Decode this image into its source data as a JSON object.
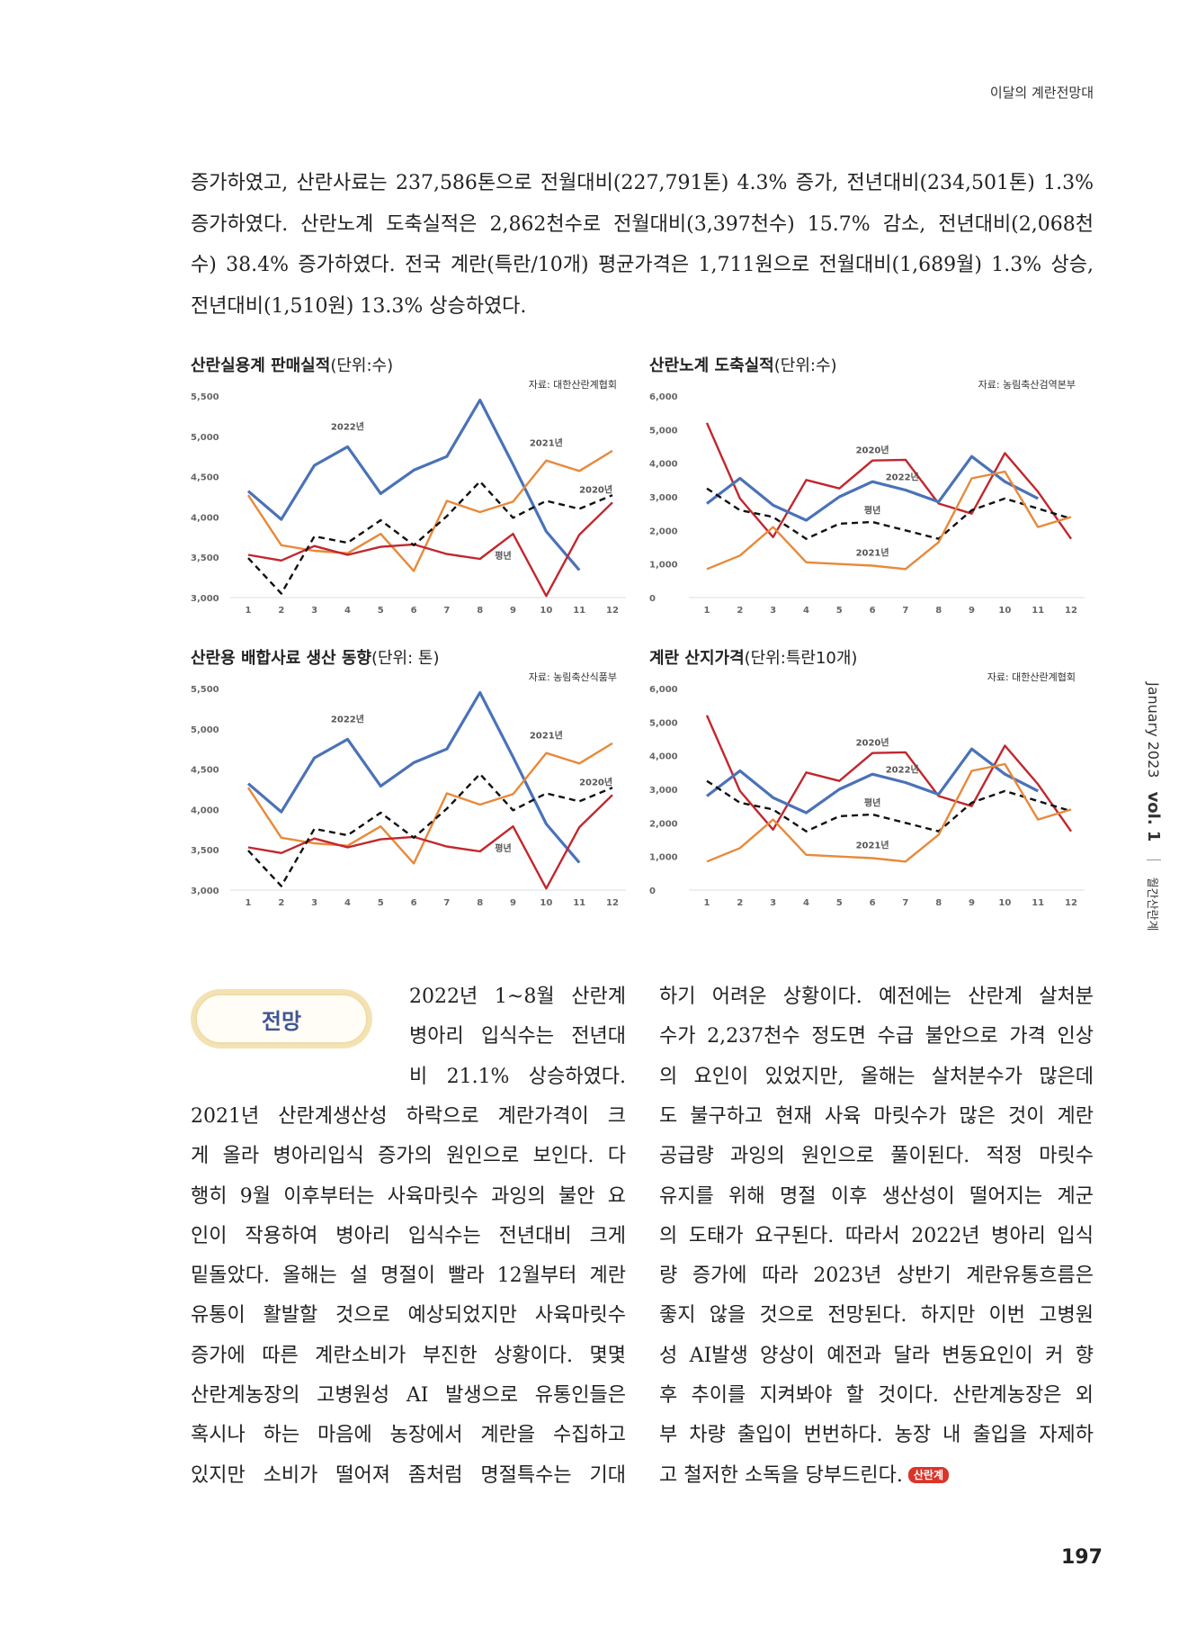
{
  "header": {
    "section": "이달의 계란전망대"
  },
  "intro": {
    "lines": [
      "증가하였고, 산란사료는 237,586톤으로 전월대비(227,791톤) 4.3% 증가, 전년대비(234,501톤) 1.3%",
      "증가하였다. 산란노계 도축실적은 2,862천수로 전월대비(3,397천수) 15.7% 감소, 전년대비(2,068천",
      "수) 38.4% 증가하였다. 전국 계란(특란/10개) 평균가격은 1,711원으로 전월대비(1,689월) 1.3% 상승,",
      "전년대비(1,510원) 13.3% 상승하였다."
    ]
  },
  "colors": {
    "y2022": "#4a72b8",
    "y2021": "#e8893a",
    "y2020": "#c1272d",
    "avg": "#111111",
    "badge_text": "#3f5597",
    "logo": "#d9352a"
  },
  "chart_data": [
    {
      "type": "line",
      "title": "산란실용계 판매실적",
      "unit": "(단위:수)",
      "source": "자료: 대한산란계협회",
      "categories": [
        "1",
        "2",
        "3",
        "4",
        "5",
        "6",
        "7",
        "8",
        "9",
        "10",
        "11",
        "12"
      ],
      "ylim": [
        3000,
        5500
      ],
      "yticks": [
        3000,
        3500,
        4000,
        4500,
        5000,
        5500
      ],
      "ytick_labels": [
        "3,000",
        "3,500",
        "4,000",
        "4,500",
        "5,000",
        "5,500"
      ],
      "series": [
        {
          "name": "2022년",
          "color": "#4a72b8",
          "style": "solid",
          "values": [
            4320,
            3970,
            4640,
            4870,
            4290,
            4580,
            4750,
            5450,
            4650,
            3820,
            3340,
            null
          ]
        },
        {
          "name": "2021년",
          "color": "#e8893a",
          "style": "solid",
          "values": [
            4270,
            3650,
            3580,
            3550,
            3790,
            3330,
            4200,
            4060,
            4190,
            4700,
            4570,
            4820
          ]
        },
        {
          "name": "2020년",
          "color": "#c1272d",
          "style": "solid",
          "values": [
            3530,
            3460,
            3640,
            3530,
            3630,
            3660,
            3540,
            3480,
            3790,
            3020,
            3780,
            4180
          ]
        },
        {
          "name": "평년",
          "color": "#111111",
          "style": "dashed",
          "values": [
            3490,
            3050,
            3760,
            3680,
            3960,
            3650,
            4010,
            4440,
            3990,
            4200,
            4100,
            4270
          ]
        }
      ]
    },
    {
      "type": "line",
      "title": "산란노계 도축실적",
      "unit": "(단위:수)",
      "source": "자료: 농림축산검역본부",
      "categories": [
        "1",
        "2",
        "3",
        "4",
        "5",
        "6",
        "7",
        "8",
        "9",
        "10",
        "11",
        "12"
      ],
      "ylim": [
        0,
        6000
      ],
      "yticks": [
        0,
        1000,
        2000,
        3000,
        4000,
        5000,
        6000
      ],
      "ytick_labels": [
        "0",
        "1,000",
        "2,000",
        "3,000",
        "4,000",
        "5,000",
        "6,000"
      ],
      "series": [
        {
          "name": "2020년",
          "color": "#c1272d",
          "style": "solid",
          "values": [
            5200,
            2950,
            1800,
            3500,
            3250,
            4080,
            4100,
            2800,
            2500,
            4300,
            3150,
            1750
          ]
        },
        {
          "name": "2022년",
          "color": "#4a72b8",
          "style": "solid",
          "values": [
            2800,
            3550,
            2750,
            2300,
            3000,
            3450,
            3200,
            2850,
            4200,
            3450,
            2950,
            null
          ]
        },
        {
          "name": "평년",
          "color": "#111111",
          "style": "dashed",
          "values": [
            3250,
            2600,
            2400,
            1750,
            2200,
            2250,
            2000,
            1750,
            2600,
            2950,
            2650,
            2350
          ]
        },
        {
          "name": "2021년",
          "color": "#e8893a",
          "style": "solid",
          "values": [
            850,
            1250,
            2100,
            1050,
            1000,
            950,
            850,
            1650,
            3550,
            3750,
            2100,
            2400
          ]
        }
      ]
    },
    {
      "type": "line",
      "title": "산란용 배합사료 생산 동향",
      "unit": "(단위: 톤)",
      "source": "자료: 농림축산식품부",
      "categories": [
        "1",
        "2",
        "3",
        "4",
        "5",
        "6",
        "7",
        "8",
        "9",
        "10",
        "11",
        "12"
      ],
      "ylim": [
        3000,
        5500
      ],
      "yticks": [
        3000,
        3500,
        4000,
        4500,
        5000,
        5500
      ],
      "ytick_labels": [
        "3,000",
        "3,500",
        "4,000",
        "4,500",
        "5,000",
        "5,500"
      ],
      "series": [
        {
          "name": "2022년",
          "color": "#4a72b8",
          "style": "solid",
          "values": [
            4320,
            3970,
            4640,
            4870,
            4290,
            4580,
            4750,
            5450,
            4650,
            3820,
            3340,
            null
          ]
        },
        {
          "name": "2021년",
          "color": "#e8893a",
          "style": "solid",
          "values": [
            4270,
            3650,
            3580,
            3550,
            3790,
            3330,
            4200,
            4060,
            4190,
            4700,
            4570,
            4820
          ]
        },
        {
          "name": "2020년",
          "color": "#c1272d",
          "style": "solid",
          "values": [
            3530,
            3460,
            3640,
            3530,
            3630,
            3660,
            3540,
            3480,
            3790,
            3020,
            3780,
            4180
          ]
        },
        {
          "name": "평년",
          "color": "#111111",
          "style": "dashed",
          "values": [
            3490,
            3050,
            3760,
            3680,
            3960,
            3650,
            4010,
            4440,
            3990,
            4200,
            4100,
            4270
          ]
        }
      ]
    },
    {
      "type": "line",
      "title": "계란 산지가격",
      "unit": "(단위:특란10개)",
      "source": "자료: 대한산란계협회",
      "categories": [
        "1",
        "2",
        "3",
        "4",
        "5",
        "6",
        "7",
        "8",
        "9",
        "10",
        "11",
        "12"
      ],
      "ylim": [
        0,
        6000
      ],
      "yticks": [
        0,
        1000,
        2000,
        3000,
        4000,
        5000,
        6000
      ],
      "ytick_labels": [
        "0",
        "1,000",
        "2,000",
        "3,000",
        "4,000",
        "5,000",
        "6,000"
      ],
      "series": [
        {
          "name": "2020년",
          "color": "#c1272d",
          "style": "solid",
          "values": [
            5200,
            2950,
            1800,
            3500,
            3250,
            4080,
            4100,
            2800,
            2500,
            4300,
            3150,
            1750
          ]
        },
        {
          "name": "2022년",
          "color": "#4a72b8",
          "style": "solid",
          "values": [
            2800,
            3550,
            2750,
            2300,
            3000,
            3450,
            3200,
            2850,
            4200,
            3450,
            2950,
            null
          ]
        },
        {
          "name": "평년",
          "color": "#111111",
          "style": "dashed",
          "values": [
            3250,
            2600,
            2400,
            1750,
            2200,
            2250,
            2000,
            1750,
            2600,
            2950,
            2650,
            2350
          ]
        },
        {
          "name": "2021년",
          "color": "#e8893a",
          "style": "solid",
          "values": [
            850,
            1250,
            2100,
            1050,
            1000,
            950,
            850,
            1650,
            3550,
            3750,
            2100,
            2400
          ]
        }
      ]
    }
  ],
  "outlook": {
    "badge": "전망",
    "col1_top": [
      "2022년 1~8월 산란계",
      "병아리 입식수는 전년대",
      "비 21.1% 상승하였다."
    ],
    "col1": [
      "2021년 산란계생산성 하락으로 계란가격이 크",
      "게 올라 병아리입식 증가의 원인으로 보인다. 다",
      "행히 9월 이후부터는 사육마릿수 과잉의 불안 요",
      "인이 작용하여 병아리 입식수는 전년대비 크게",
      "밑돌았다. 올해는 설 명절이 빨라 12월부터 계란",
      "유통이 활발할 것으로 예상되었지만 사육마릿수",
      "증가에 따른 계란소비가 부진한 상황이다. 몇몇",
      "산란계농장의 고병원성 AI 발생으로 유통인들은",
      "혹시나 하는 마음에 농장에서 계란을 수집하고",
      "있지만 소비가 떨어져 좀처럼 명절특수는 기대"
    ],
    "col2": [
      "하기 어려운 상황이다. 예전에는 산란계 살처분",
      "수가 2,237천수 정도면 수급 불안으로 가격 인상",
      "의 요인이 있었지만, 올해는 살처분수가 많은데",
      "도 불구하고 현재 사육 마릿수가 많은 것이 계란",
      "공급량 과잉의 원인으로 풀이된다. 적정 마릿수",
      "유지를 위해 명절 이후 생산성이 떨어지는 계군",
      "의 도태가 요구된다. 따라서 2022년 병아리 입식",
      "량 증가에 따라 2023년 상반기 계란유통흐름은",
      "좋지 않을 것으로 전망된다. 하지만 이번 고병원",
      "성 AI발생 양상이 예전과 달라 변동요인이 커 향",
      "후 추이를 지켜봐야 할 것이다. 산란계농장은 외",
      "부 차량 출입이 번번하다. 농장 내 출입을 자제하",
      "고 철저한 소독을 당부드린다."
    ],
    "end_logo": "산란계"
  },
  "sidebar": {
    "date": "January 2023",
    "vol": "vol. 1",
    "magazine": "월간산란계"
  },
  "page_number": "197"
}
